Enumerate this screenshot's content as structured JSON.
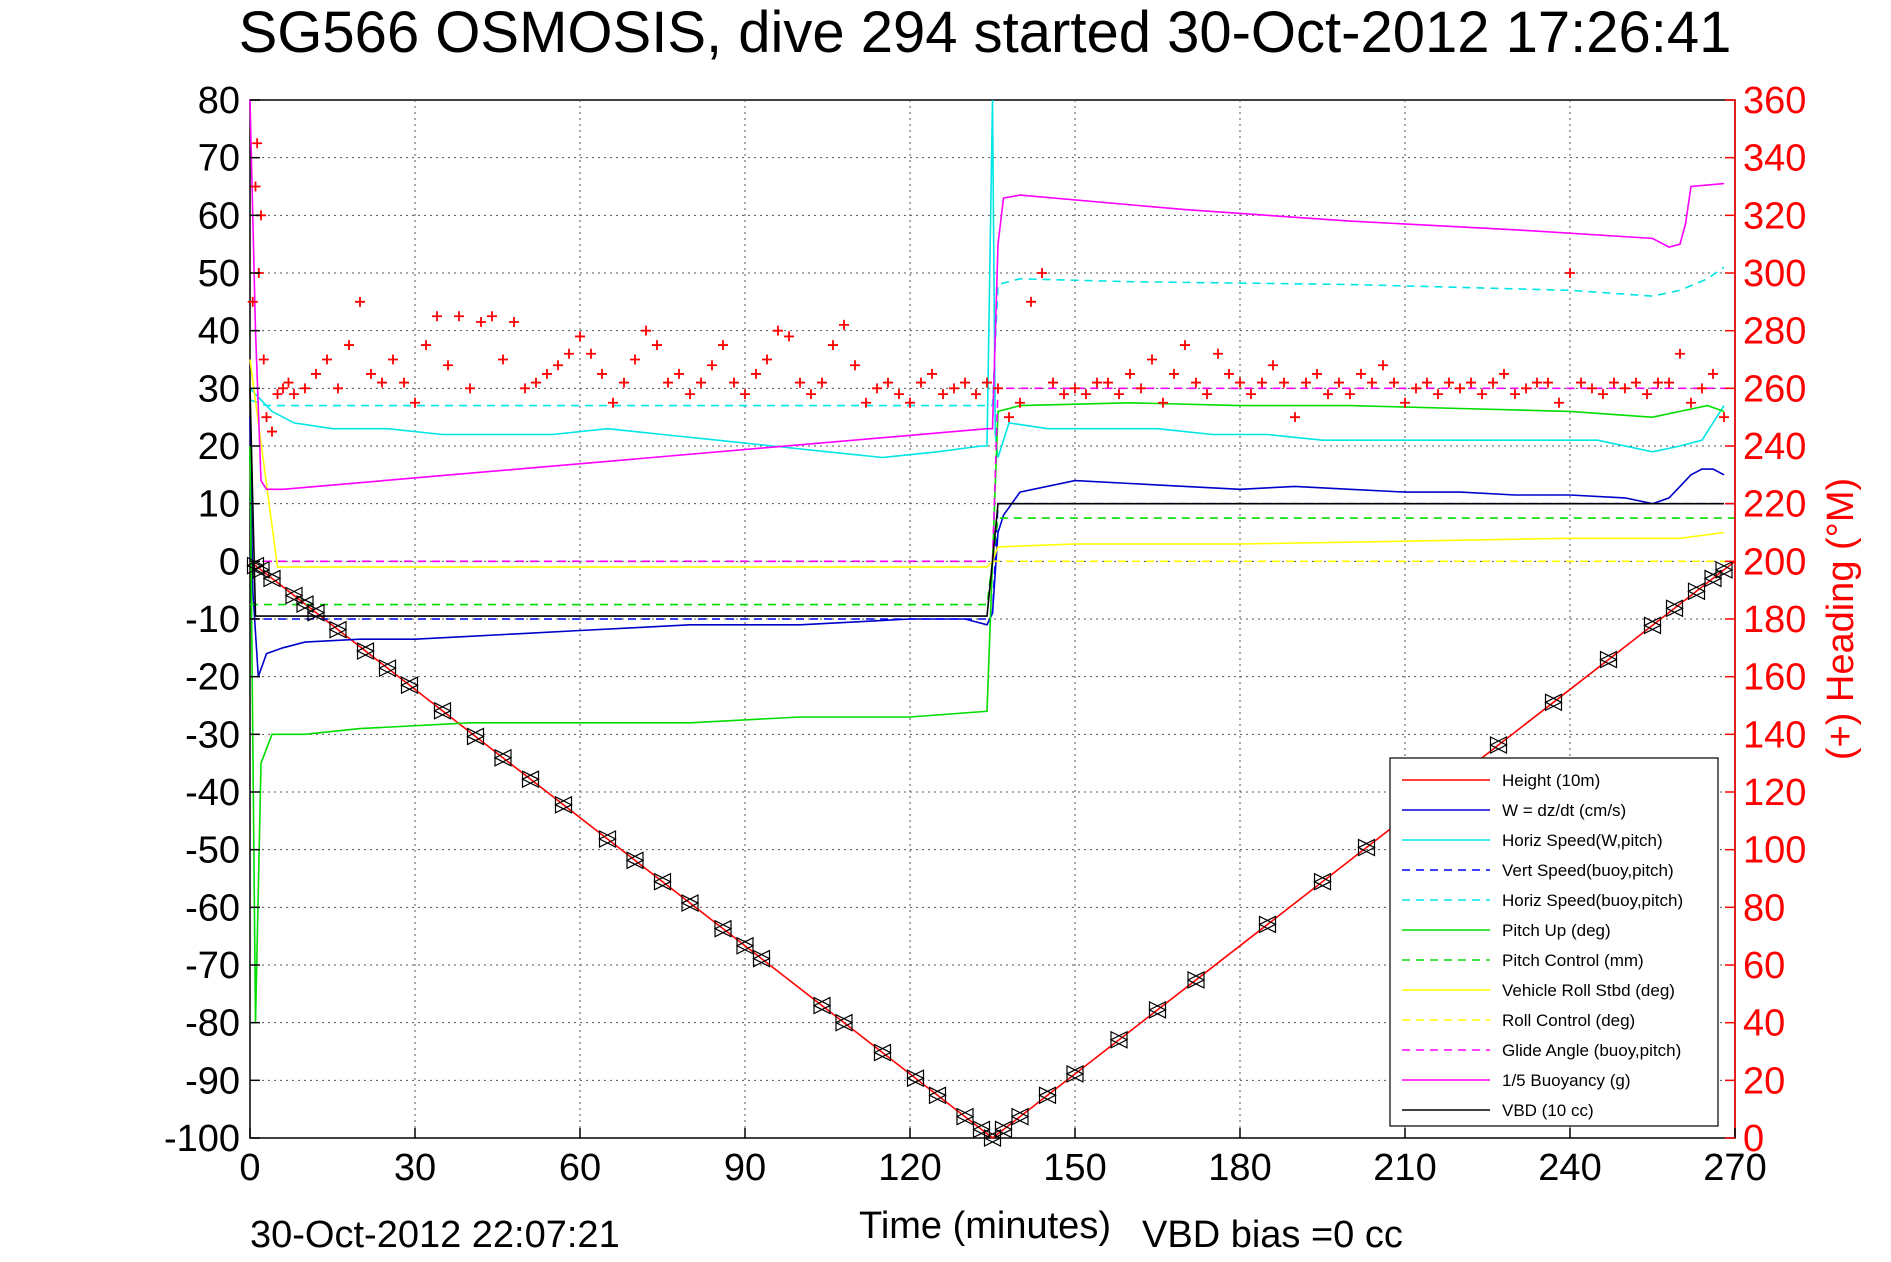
{
  "chart_data": {
    "type": "line",
    "title": "SG566 OSMOSIS, dive 294 started 30-Oct-2012 17:26:41",
    "xlabel": "Time (minutes)",
    "ylabel_right": "(+) Heading (°M)",
    "footer_left": "30-Oct-2012 22:07:21",
    "footer_right": "VBD bias =0 cc",
    "xlim": [
      0,
      270
    ],
    "ylim": [
      -100,
      80
    ],
    "ylim_right": [
      0,
      360
    ],
    "grid": true,
    "legend_position": "lower-right",
    "x_ticks": [
      "0",
      "30",
      "60",
      "90",
      "120",
      "150",
      "180",
      "210",
      "240",
      "270"
    ],
    "y_ticks": [
      "80",
      "70",
      "60",
      "50",
      "40",
      "30",
      "20",
      "10",
      "0",
      "-10",
      "-20",
      "-30",
      "-40",
      "-50",
      "-60",
      "-70",
      "-80",
      "-90",
      "-100"
    ],
    "y_ticks_right": [
      "360",
      "340",
      "320",
      "300",
      "280",
      "260",
      "240",
      "220",
      "200",
      "180",
      "160",
      "140",
      "120",
      "100",
      "80",
      "60",
      "40",
      "20",
      "0"
    ],
    "series": [
      {
        "name": "Height (10m)",
        "color": "#ff0000",
        "style": "solid",
        "x": [
          0,
          135,
          270
        ],
        "y": [
          0,
          -100,
          0
        ]
      },
      {
        "name": "W = dz/dt (cm/s)",
        "color": "#0000cc",
        "style": "solid",
        "x": [
          0,
          0.5,
          1.5,
          3,
          6,
          10,
          20,
          30,
          40,
          50,
          60,
          70,
          80,
          90,
          100,
          110,
          120,
          130,
          134,
          135,
          136,
          137,
          140,
          150,
          160,
          170,
          180,
          190,
          200,
          210,
          220,
          230,
          240,
          250,
          255,
          258,
          260,
          262,
          264,
          266,
          268
        ],
        "y": [
          25,
          -5,
          -20,
          -16,
          -15,
          -14,
          -13.5,
          -13.5,
          -13,
          -12.5,
          -12,
          -11.5,
          -11,
          -11,
          -11,
          -10.5,
          -10,
          -10,
          -11,
          -9,
          5,
          8,
          12,
          14,
          13.5,
          13,
          12.5,
          13,
          12.5,
          12,
          12,
          11.5,
          11.5,
          11,
          10,
          11,
          13,
          15,
          16,
          16,
          15
        ]
      },
      {
        "name": "Horiz Speed(W,pitch)",
        "color": "#00e5e5",
        "style": "solid",
        "x": [
          0,
          2,
          4,
          8,
          15,
          25,
          35,
          45,
          55,
          65,
          75,
          85,
          95,
          105,
          115,
          125,
          133,
          134,
          135,
          135.5,
          136,
          138,
          145,
          155,
          165,
          175,
          185,
          195,
          205,
          215,
          225,
          235,
          245,
          255,
          260,
          264,
          268
        ],
        "y": [
          30,
          28,
          26,
          24,
          23,
          23,
          22,
          22,
          22,
          23,
          22,
          21,
          20,
          19,
          18,
          19,
          20,
          20,
          80,
          22,
          18,
          24,
          23,
          23,
          23,
          22,
          22,
          21,
          21,
          21,
          21,
          21,
          21,
          19,
          20,
          21,
          27
        ]
      },
      {
        "name": "Vert Speed(buoy,pitch)",
        "color": "#0000ff",
        "style": "dashed",
        "x": [
          0,
          5,
          134,
          135,
          136,
          270
        ],
        "y": [
          -10,
          -10,
          -10,
          -9,
          10,
          10
        ]
      },
      {
        "name": "Horiz Speed(buoy,pitch)",
        "color": "#00e5e5",
        "style": "dashed",
        "x": [
          0,
          3,
          134,
          135,
          136,
          140,
          160,
          200,
          240,
          255,
          260,
          265,
          268
        ],
        "y": [
          28,
          27,
          27,
          27,
          48,
          49,
          48.5,
          48,
          47,
          46,
          47,
          49,
          51
        ]
      },
      {
        "name": "Pitch Up (deg)",
        "color": "#00dd00",
        "style": "solid",
        "x": [
          0,
          1,
          2,
          4,
          10,
          20,
          40,
          60,
          80,
          100,
          120,
          134,
          135,
          136,
          140,
          160,
          180,
          200,
          220,
          240,
          255,
          260,
          265,
          268
        ],
        "y": [
          20,
          -80,
          -35,
          -30,
          -30,
          -29,
          -28,
          -28,
          -28,
          -27,
          -27,
          -26,
          0,
          26,
          27,
          27.5,
          27,
          27,
          26.5,
          26,
          25,
          26,
          27,
          26
        ]
      },
      {
        "name": "Pitch Control (mm)",
        "color": "#00dd00",
        "style": "dashed",
        "x": [
          0,
          5,
          134,
          135,
          136,
          270
        ],
        "y": [
          -7.5,
          -7.5,
          -7.5,
          0,
          7.5,
          7.5
        ]
      },
      {
        "name": "Vehicle Roll Stbd (deg)",
        "color": "#ffff00",
        "style": "solid",
        "x": [
          0,
          5,
          20,
          40,
          60,
          80,
          100,
          120,
          134,
          135,
          136,
          150,
          180,
          210,
          240,
          260,
          268
        ],
        "y": [
          35,
          -1,
          -1,
          -1,
          -1,
          -1,
          -1,
          -1,
          -1,
          0,
          2.5,
          3,
          3,
          3.5,
          4,
          4,
          5
        ]
      },
      {
        "name": "Roll Control (deg)",
        "color": "#ffff00",
        "style": "dashed",
        "x": [
          0,
          134,
          135,
          136,
          270
        ],
        "y": [
          0,
          0,
          0,
          0,
          0
        ]
      },
      {
        "name": "Glide Angle (buoy,pitch)",
        "color": "#ff00ff",
        "style": "dashed",
        "x": [
          0,
          134,
          135,
          136,
          270
        ],
        "y": [
          0,
          0,
          0,
          30,
          30
        ]
      },
      {
        "name": "1/5 Buoyancy (g)",
        "color": "#ff00ff",
        "style": "solid",
        "x": [
          0,
          1,
          2,
          3,
          6,
          134,
          135,
          136,
          137,
          140,
          170,
          200,
          230,
          255,
          258,
          260,
          261,
          262,
          268
        ],
        "y": [
          80,
          40,
          14,
          12.5,
          12.5,
          23,
          23,
          55,
          63,
          63.5,
          61,
          59,
          57.5,
          56,
          54.5,
          55,
          58.5,
          65,
          65.5
        ]
      },
      {
        "name": "VBD (10 cc)",
        "color": "#000000",
        "style": "solid",
        "x": [
          0,
          1,
          2,
          134,
          135,
          136,
          137,
          268
        ],
        "y": [
          30,
          -9.5,
          -9.5,
          -9.5,
          0,
          10,
          10,
          10
        ]
      }
    ],
    "heading_marks": {
      "name": "(+) Heading",
      "color": "#ff0000",
      "marker": "+",
      "axis": "right",
      "x": [
        0.5,
        1,
        1.3,
        1.6,
        2,
        2.5,
        3,
        4,
        5,
        6,
        7,
        8,
        10,
        12,
        14,
        16,
        18,
        20,
        22,
        24,
        26,
        28,
        30,
        32,
        34,
        36,
        38,
        40,
        42,
        44,
        46,
        48,
        50,
        52,
        54,
        56,
        58,
        60,
        62,
        64,
        66,
        68,
        70,
        72,
        74,
        76,
        78,
        80,
        82,
        84,
        86,
        88,
        90,
        92,
        94,
        96,
        98,
        100,
        102,
        104,
        106,
        108,
        110,
        112,
        114,
        116,
        118,
        120,
        122,
        124,
        126,
        128,
        130,
        132,
        134,
        136,
        138,
        140,
        142,
        144,
        146,
        148,
        150,
        152,
        154,
        156,
        158,
        160,
        162,
        164,
        166,
        168,
        170,
        172,
        174,
        176,
        178,
        180,
        182,
        184,
        186,
        188,
        190,
        192,
        194,
        196,
        198,
        200,
        202,
        204,
        206,
        208,
        210,
        212,
        214,
        216,
        218,
        220,
        222,
        224,
        226,
        228,
        230,
        232,
        234,
        236,
        238,
        240,
        242,
        244,
        246,
        248,
        250,
        252,
        254,
        256,
        258,
        260,
        262,
        264,
        266,
        268
      ],
      "y": [
        290,
        330,
        345,
        300,
        320,
        270,
        250,
        245,
        258,
        260,
        262,
        258,
        260,
        265,
        270,
        260,
        275,
        290,
        265,
        262,
        270,
        262,
        255,
        275,
        285,
        268,
        285,
        260,
        283,
        285,
        270,
        283,
        260,
        262,
        265,
        268,
        272,
        278,
        272,
        265,
        255,
        262,
        270,
        280,
        275,
        262,
        265,
        258,
        262,
        268,
        275,
        262,
        258,
        265,
        270,
        280,
        278,
        262,
        258,
        262,
        275,
        282,
        268,
        255,
        260,
        262,
        258,
        255,
        262,
        265,
        258,
        260,
        262,
        258,
        262,
        260,
        250,
        255,
        290,
        300,
        262,
        258,
        260,
        258,
        262,
        262,
        258,
        265,
        260,
        270,
        255,
        265,
        275,
        262,
        258,
        272,
        265,
        262,
        258,
        262,
        268,
        262,
        250,
        262,
        265,
        258,
        262,
        258,
        265,
        262,
        268,
        262,
        255,
        260,
        262,
        258,
        262,
        260,
        262,
        258,
        262,
        265,
        258,
        260,
        262,
        262,
        255,
        300,
        262,
        260,
        258,
        262,
        260,
        262,
        258,
        262,
        262,
        272,
        255,
        260,
        265,
        250
      ]
    },
    "profile_markers": {
      "color": "#000000",
      "marker": "triangle",
      "x": [
        1,
        2,
        4,
        8,
        10,
        12,
        16,
        21,
        25,
        29,
        35,
        41,
        46,
        51,
        57,
        65,
        70,
        75,
        80,
        86,
        90,
        93,
        104,
        108,
        115,
        121,
        125,
        130,
        133,
        135,
        137,
        140,
        145,
        150,
        158,
        165,
        172,
        185,
        195,
        203,
        211,
        219,
        227,
        237,
        247,
        255,
        259,
        263,
        266,
        268
      ]
    }
  }
}
